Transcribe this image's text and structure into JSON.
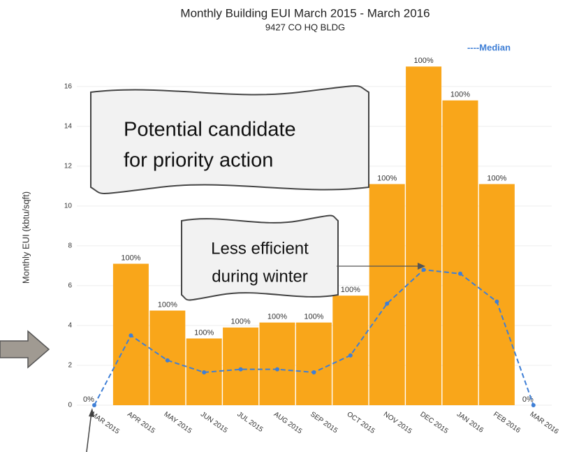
{
  "chart_data": {
    "type": "bar",
    "title": "Monthly Building EUI March 2015 - March 2016",
    "subtitle": "9427 CO HQ BLDG",
    "y_label": "Monthly EUI (kbtu/sqft)",
    "categories": [
      "MAR 2015",
      "APR 2015",
      "MAY 2015",
      "JUN 2015",
      "JUL 2015",
      "AUG 2015",
      "SEP 2015",
      "OCT 2015",
      "NOV 2015",
      "DEC 2015",
      "JAN 2016",
      "FEB 2016",
      "MAR 2016"
    ],
    "series": [
      {
        "name": "EUI",
        "color": "#f9a61a",
        "values": [
          0,
          7.1,
          4.75,
          3.35,
          3.9,
          4.15,
          4.15,
          5.5,
          11.1,
          17.0,
          15.3,
          11.1,
          0
        ]
      },
      {
        "name": "----Median",
        "color": "#3f7fd6",
        "values": [
          0,
          3.5,
          2.25,
          1.65,
          1.8,
          1.8,
          1.65,
          2.5,
          5.1,
          6.8,
          6.6,
          5.2,
          0
        ]
      }
    ],
    "bar_labels": [
      "0%",
      "100%",
      "100%",
      "100%",
      "100%",
      "100%",
      "100%",
      "100%",
      "100%",
      "100%",
      "100%",
      "100%",
      "0%"
    ],
    "ylim": [
      0,
      17.5
    ],
    "yticks": [
      0,
      2,
      4,
      6,
      8,
      10,
      12,
      14,
      16
    ],
    "annotations": [
      {
        "lines": [
          "Potential candidate",
          "for priority action"
        ]
      },
      {
        "lines": [
          "Less efficient",
          "during winter"
        ]
      }
    ]
  }
}
